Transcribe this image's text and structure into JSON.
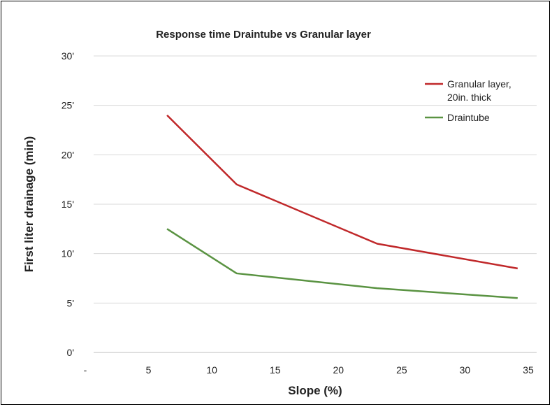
{
  "chart_data": {
    "type": "line",
    "title": "Response time Draintube vs Granular layer",
    "xlabel": "Slope (%)",
    "ylabel": "First liter drainage (min)",
    "xlim": [
      0,
      35
    ],
    "ylim": [
      0,
      30
    ],
    "x_ticks": [
      "-",
      "5",
      "10",
      "15",
      "20",
      "25",
      "30",
      "35"
    ],
    "y_ticks": [
      "0'",
      "5'",
      "10'",
      "15'",
      "20'",
      "25'",
      "30'"
    ],
    "grid": true,
    "legend_position": "top-right",
    "series": [
      {
        "name_lines": [
          "Granular layer,",
          "20in. thick"
        ],
        "color": "#c0282a",
        "x": [
          5.8,
          11.3,
          22.4,
          33.5
        ],
        "y": [
          24,
          17,
          11,
          8.5
        ]
      },
      {
        "name_lines": [
          "Draintube"
        ],
        "color": "#5a9342",
        "x": [
          5.8,
          11.3,
          22.4,
          33.5
        ],
        "y": [
          12.5,
          8,
          6.5,
          5.5
        ]
      }
    ]
  }
}
